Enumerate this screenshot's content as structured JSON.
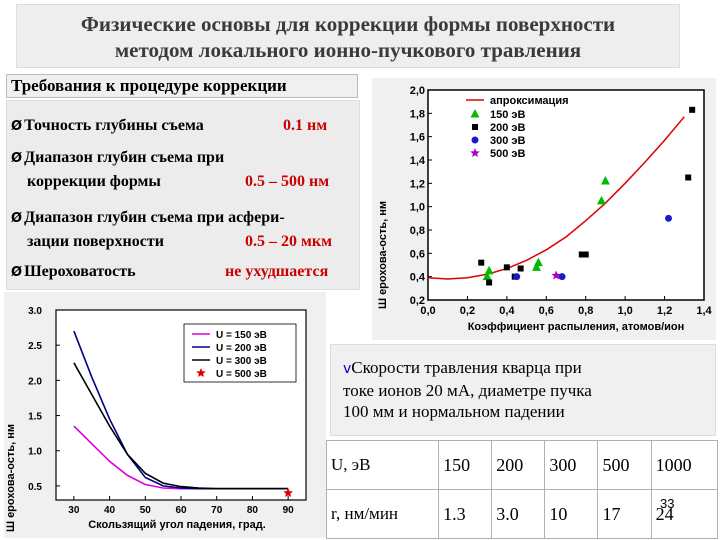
{
  "slide": {
    "title_line1": "Физические основы для коррекции формы поверхности",
    "title_line2": "методом локального ионно-пучкового травления",
    "requirements_heading": "Требования к процедуре коррекции",
    "bullets": [
      {
        "text": "Точность глубины съема",
        "value": "0.1 нм"
      },
      {
        "text": "Диапазон глубин съема при",
        "text2": "коррекции формы",
        "value": "0.5 – 500 нм"
      },
      {
        "text": "Диапазон глубин съема при асфери-",
        "text2": "зации поверхности",
        "value": "0.5 – 20 мкм"
      },
      {
        "text": "Шероховатость",
        "value": "не ухудшается"
      }
    ],
    "bullet_symbol": "Ø",
    "rates_symbol": "v",
    "rates_text_line1": "Скорости травления кварца при",
    "rates_text_line2": "токе ионов 20 мА, диаметре пучка",
    "rates_text_line3": "100 мм и нормальном падении",
    "table": {
      "row1_header": "U, эВ",
      "row1_values": [
        "150",
        "200",
        "300",
        "500",
        "1000"
      ],
      "row2_header": "r, нм/мин",
      "row2_values": [
        "1.3",
        "3.0",
        "10",
        "17",
        "24"
      ]
    },
    "page_number": "33",
    "colors": {
      "red": "#cc0000",
      "blue": "#0000cc",
      "title": "#3a3a3a"
    }
  },
  "chart_data": [
    {
      "type": "scatter",
      "ylabel": "Ш ерохова-ость, нм",
      "xlabel": "Коэффициент распыления, атомов/ион",
      "xlim": [
        0.0,
        1.4
      ],
      "ylim": [
        0.2,
        2.0
      ],
      "x_ticks": [
        "0,0",
        "0,2",
        "0,4",
        "0,6",
        "0,8",
        "1,0",
        "1,2",
        "1,4"
      ],
      "y_ticks": [
        "0,2",
        "0,4",
        "0,6",
        "0,8",
        "1,0",
        "1,2",
        "1,4",
        "1,6",
        "1,8",
        "2,0"
      ],
      "legend_position": "top-left",
      "fit": {
        "name": "апроксимация",
        "color": "#dd0000",
        "x": [
          0.0,
          0.1,
          0.2,
          0.3,
          0.4,
          0.5,
          0.6,
          0.7,
          0.8,
          0.9,
          1.0,
          1.1,
          1.2,
          1.3
        ],
        "y": [
          0.39,
          0.38,
          0.39,
          0.42,
          0.47,
          0.54,
          0.63,
          0.74,
          0.88,
          1.03,
          1.2,
          1.38,
          1.57,
          1.77
        ]
      },
      "series": [
        {
          "name": "150 эВ",
          "marker": "triangle",
          "color": "#00bb00",
          "x": [
            0.3,
            0.31,
            0.55,
            0.56,
            0.88,
            0.9
          ],
          "y": [
            0.4,
            0.45,
            0.48,
            0.52,
            1.05,
            1.22
          ]
        },
        {
          "name": "200 эВ",
          "marker": "square",
          "color": "#000000",
          "x": [
            0.27,
            0.31,
            0.4,
            0.44,
            0.47,
            0.78,
            0.8,
            1.32,
            1.34
          ],
          "y": [
            0.52,
            0.35,
            0.48,
            0.4,
            0.47,
            0.59,
            0.59,
            1.25,
            1.83
          ]
        },
        {
          "name": "300 эВ",
          "marker": "circle",
          "color": "#1a1acc",
          "x": [
            0.45,
            0.68,
            1.22
          ],
          "y": [
            0.4,
            0.4,
            0.9
          ]
        },
        {
          "name": "500 эВ",
          "marker": "star",
          "color": "#aa00cc",
          "x": [
            0.65
          ],
          "y": [
            0.41
          ]
        }
      ]
    },
    {
      "type": "line",
      "ylabel": "Ш ерохова-ость, нм",
      "xlabel": "Скользящий угол падения, град.",
      "xlim": [
        25,
        95
      ],
      "ylim": [
        0.3,
        3.0
      ],
      "x_ticks": [
        "30",
        "40",
        "50",
        "60",
        "70",
        "80",
        "90"
      ],
      "y_ticks": [
        "0.5",
        "1.0",
        "1.5",
        "2.0",
        "2.5",
        "3.0"
      ],
      "legend_position": "top-right",
      "series": [
        {
          "name": "U = 150 эВ",
          "color": "#dd00dd",
          "x": [
            30,
            35,
            40,
            45,
            50,
            55,
            60,
            65,
            70,
            80,
            90
          ],
          "y": [
            1.35,
            1.1,
            0.85,
            0.65,
            0.52,
            0.47,
            0.46,
            0.46,
            0.46,
            0.46,
            0.46
          ]
        },
        {
          "name": "U = 200 эВ",
          "color": "#000088",
          "x": [
            30,
            35,
            40,
            45,
            50,
            55,
            60,
            65,
            70,
            80,
            90
          ],
          "y": [
            2.7,
            2.05,
            1.45,
            0.95,
            0.62,
            0.5,
            0.47,
            0.46,
            0.46,
            0.46,
            0.46
          ]
        },
        {
          "name": "U = 300 эВ",
          "color": "#000000",
          "x": [
            30,
            35,
            40,
            45,
            50,
            55,
            60,
            65,
            70,
            80,
            90
          ],
          "y": [
            2.25,
            1.8,
            1.35,
            0.95,
            0.68,
            0.54,
            0.49,
            0.47,
            0.46,
            0.46,
            0.46
          ]
        },
        {
          "name": "U = 500 эВ",
          "color": "#dd0000",
          "marker": "star",
          "x": [
            90
          ],
          "y": [
            0.4
          ]
        }
      ]
    }
  ]
}
